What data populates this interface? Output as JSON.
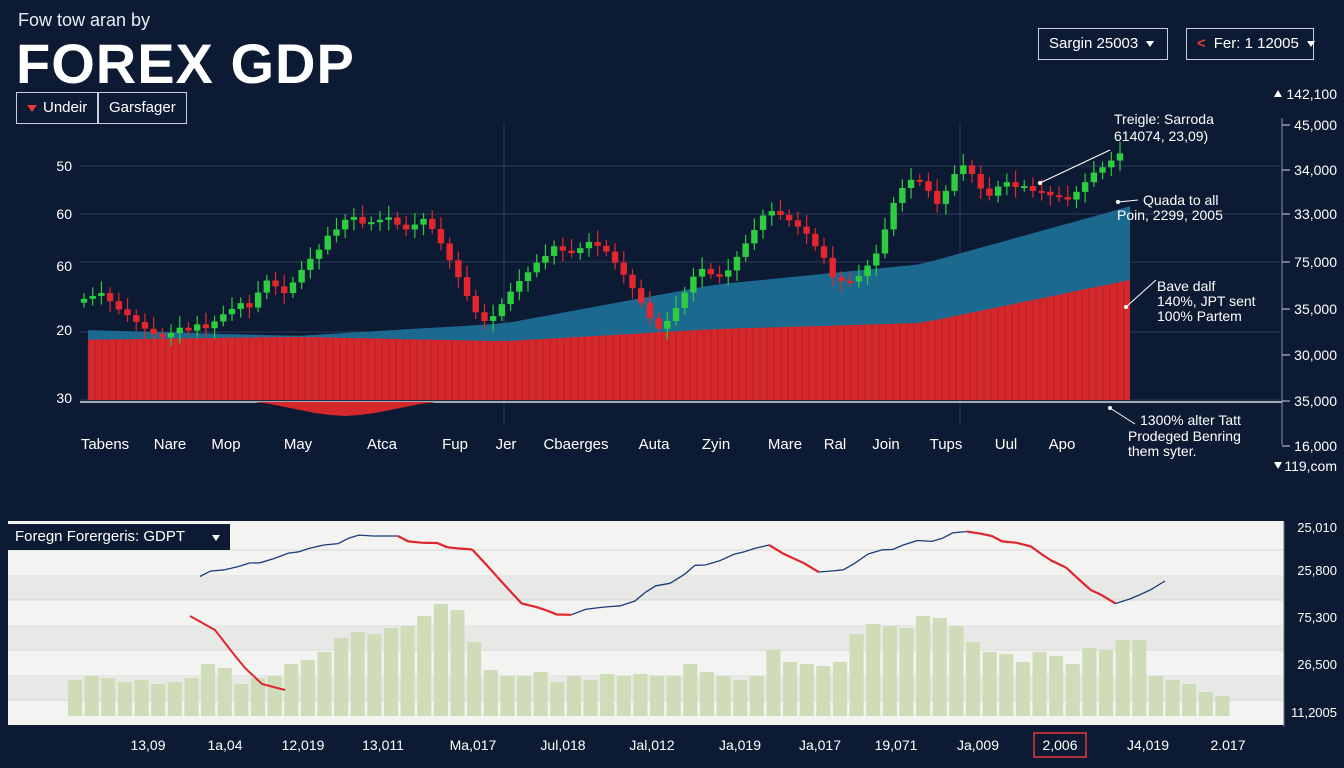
{
  "header": {
    "subtitle": "Fow tow aran by",
    "title": "FOREX  GDP",
    "buttons": [
      {
        "label": "Undeir"
      },
      {
        "label": "Garsfager"
      }
    ],
    "search_dropdown": "Sargin 25003",
    "date_dropdown": "Fer: 1 12005"
  },
  "colors": {
    "background": "#0d1a33",
    "bullish": "#2ecc40",
    "bearish": "#e5262e",
    "area": "#1d6e95",
    "red_area": "#d4282c",
    "line_blue": "#1b3a7a",
    "bar_green": "#cfdcb8"
  },
  "chart_data": [
    {
      "type": "candlestick",
      "title": "FOREX  GDP",
      "x_tick_labels": [
        "Tabens",
        "Nare",
        "Mop",
        "May",
        "Atca",
        "Fup",
        "Jer",
        "Cbaerges",
        "Auta",
        "Zyin",
        "Mare",
        "Ral",
        "Join",
        "Tups",
        "Uul",
        "Apo"
      ],
      "y_left_labels": [
        "50",
        "60",
        "60",
        "20",
        "30"
      ],
      "y_right_labels": [
        "142,100",
        "45,000",
        "34,000",
        "33,000",
        "75,000",
        "35,000",
        "30,000",
        "35,000",
        "16,000",
        "119,com"
      ],
      "close_series": [
        21.0,
        21.6,
        22.2,
        20.5,
        18.8,
        17.6,
        16.2,
        14.8,
        13.7,
        13.0,
        13.9,
        15.0,
        14.4,
        15.7,
        14.9,
        16.3,
        17.8,
        18.9,
        20.1,
        19.2,
        22.3,
        24.8,
        23.6,
        22.2,
        24.4,
        27.0,
        29.3,
        31.2,
        34.1,
        35.4,
        37.4,
        38.0,
        36.6,
        36.9,
        37.4,
        37.9,
        36.4,
        35.4,
        36.4,
        37.6,
        35.5,
        32.5,
        29.0,
        25.5,
        21.6,
        18.2,
        16.4,
        17.4,
        19.9,
        22.5,
        24.7,
        26.5,
        28.5,
        29.9,
        31.9,
        31.0,
        30.5,
        31.5,
        32.8,
        32.0,
        30.8,
        28.5,
        26.0,
        23.2,
        20.2,
        17.0,
        14.8,
        16.4,
        19.1,
        22.3,
        25.6,
        27.2,
        26.1,
        25.6,
        26.9,
        29.7,
        32.5,
        35.3,
        38.3,
        39.2,
        38.4,
        37.3,
        36.0,
        34.5,
        31.9,
        29.5,
        25.5,
        24.7,
        24.6,
        25.7,
        27.9,
        30.4,
        35.4,
        40.9,
        44.0,
        45.7,
        45.4,
        43.4,
        40.7,
        43.4,
        46.9,
        48.7,
        46.9,
        43.9,
        42.4,
        44.3,
        45.2,
        44.2,
        44.4,
        43.4,
        43.2,
        42.5,
        42.1,
        41.6,
        43.2,
        45.2,
        47.2,
        48.3,
        49.7,
        51.2
      ],
      "areas": [
        {
          "name": "blue_area",
          "values": [
            14.5,
            13.3,
            15.9,
            23.9,
            28.2,
            40.2
          ]
        },
        {
          "name": "red_area",
          "values": [
            12.5,
            13.1,
            12.2,
            14.7,
            16.0,
            24.9
          ]
        }
      ],
      "annotations": [
        "Treigle: Sarroda",
        "614074, 23,09)",
        "Quada to all",
        "Poin, 2299, 2005",
        "Bave dalf",
        "140%, JPT sent",
        "100% Partem",
        "1300% alter Tatt",
        "Prodeged Benring",
        "them syter."
      ]
    },
    {
      "type": "line",
      "title": "Foregn Forergeris: GDPT",
      "x_tick_labels": [
        "13,09",
        "1a,04",
        "12,019",
        "13,011",
        "Ma,017",
        "Jul,018",
        "Jal,012",
        "Ja,019",
        "Ja,017",
        "19,071",
        "Ja,009",
        "2,006",
        "J4,019",
        "2.017"
      ],
      "highlighted_tick": "2,006",
      "y_right_labels": [
        "25,010",
        "25,800",
        "75,300",
        "26,500",
        "11,2005"
      ],
      "line_values": [
        62,
        65,
        68,
        70,
        73,
        76,
        79,
        80,
        80,
        77,
        75,
        74,
        62,
        50,
        47,
        45,
        48,
        49,
        55,
        59,
        67,
        69,
        73,
        76,
        70,
        64,
        65,
        72,
        74,
        78,
        79,
        82,
        80,
        77,
        72,
        66,
        56,
        50,
        54,
        60
      ],
      "bar_values": [
        18,
        20,
        19,
        17,
        18,
        16,
        17,
        19,
        26,
        24,
        16,
        19,
        20,
        26,
        28,
        32,
        39,
        42,
        41,
        44,
        45,
        50,
        56,
        53,
        37,
        23,
        20,
        20,
        22,
        17,
        20,
        18,
        21,
        20,
        21,
        20,
        20,
        26,
        22,
        20,
        18,
        20,
        33,
        27,
        26,
        25,
        27,
        41,
        46,
        45,
        44,
        50,
        49,
        45,
        37,
        32,
        31,
        27,
        32,
        30,
        26,
        34,
        33,
        38,
        38,
        20,
        18,
        16,
        12,
        10
      ]
    }
  ]
}
